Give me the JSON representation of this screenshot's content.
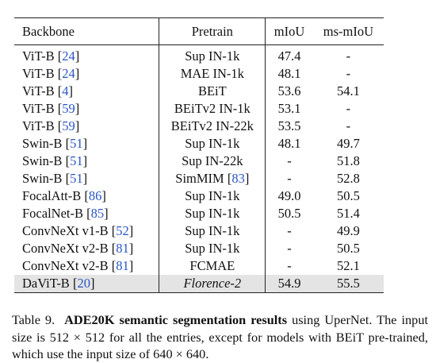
{
  "table": {
    "headers": [
      "Backbone",
      "Pretrain",
      "mIoU",
      "ms-mIoU"
    ],
    "rows": [
      {
        "backbone": "ViT-B",
        "ref": "24",
        "pretrain": "Sup IN-1k",
        "pretrain_ref": "",
        "miou": "47.4",
        "ms_miou": "-"
      },
      {
        "backbone": "ViT-B",
        "ref": "24",
        "pretrain": "MAE IN-1k",
        "pretrain_ref": "",
        "miou": "48.1",
        "ms_miou": "-"
      },
      {
        "backbone": "ViT-B",
        "ref": "4",
        "pretrain": "BEiT",
        "pretrain_ref": "",
        "miou": "53.6",
        "ms_miou": "54.1"
      },
      {
        "backbone": "ViT-B",
        "ref": "59",
        "pretrain": "BEiTv2 IN-1k",
        "pretrain_ref": "",
        "miou": "53.1",
        "ms_miou": "-"
      },
      {
        "backbone": "ViT-B",
        "ref": "59",
        "pretrain": "BEiTv2 IN-22k",
        "pretrain_ref": "",
        "miou": "53.5",
        "ms_miou": "-"
      },
      {
        "backbone": "Swin-B",
        "ref": "51",
        "pretrain": "Sup IN-1k",
        "pretrain_ref": "",
        "miou": "48.1",
        "ms_miou": "49.7"
      },
      {
        "backbone": "Swin-B",
        "ref": "51",
        "pretrain": "Sup IN-22k",
        "pretrain_ref": "",
        "miou": "-",
        "ms_miou": "51.8"
      },
      {
        "backbone": "Swin-B",
        "ref": "51",
        "pretrain": "SimMIM",
        "pretrain_ref": "83",
        "miou": "-",
        "ms_miou": "52.8"
      },
      {
        "backbone": "FocalAtt-B",
        "ref": "86",
        "pretrain": "Sup IN-1k",
        "pretrain_ref": "",
        "miou": "49.0",
        "ms_miou": "50.5"
      },
      {
        "backbone": "FocalNet-B",
        "ref": "85",
        "pretrain": "Sup IN-1k",
        "pretrain_ref": "",
        "miou": "50.5",
        "ms_miou": "51.4"
      },
      {
        "backbone": "ConvNeXt v1-B",
        "ref": "52",
        "pretrain": "Sup IN-1k",
        "pretrain_ref": "",
        "miou": "-",
        "ms_miou": "49.9"
      },
      {
        "backbone": "ConvNeXt v2-B",
        "ref": "81",
        "pretrain": "Sup IN-1k",
        "pretrain_ref": "",
        "miou": "-",
        "ms_miou": "50.5"
      },
      {
        "backbone": "ConvNeXt v2-B",
        "ref": "81",
        "pretrain": "FCMAE",
        "pretrain_ref": "",
        "miou": "-",
        "ms_miou": "52.1"
      },
      {
        "backbone": "DaViT-B",
        "ref": "20",
        "pretrain": "Florence-2",
        "pretrain_ref": "",
        "miou": "54.9",
        "ms_miou": "55.5",
        "highlight": true
      }
    ]
  },
  "caption": {
    "label": "Table 9.",
    "bold": "ADE20K semantic segmentation results",
    "text_1": " using UperNet. The input size is ",
    "size_a": "512 × 512",
    "text_2": " for all the entries, except for models with BEiT pre-trained, which use the input size of ",
    "size_b": "640 × 640",
    "text_3": "."
  }
}
